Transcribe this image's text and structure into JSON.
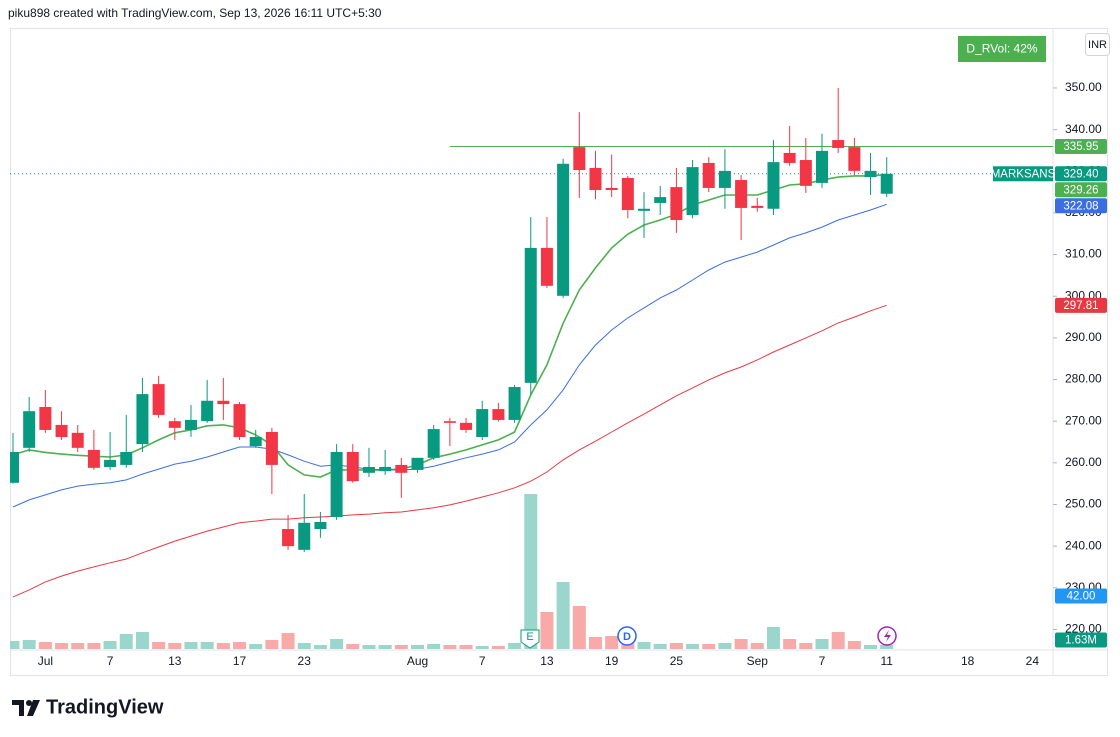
{
  "header": "piku898 created with TradingView.com, Sep 13, 2026 16:11 UTC+5:30",
  "brand": "TradingView",
  "chart_data": {
    "type": "candlestick",
    "symbol": "MARKSANS",
    "currency": "INR",
    "up_color": "#089981",
    "down_color": "#f23645",
    "categories": [
      null,
      null,
      "Jul",
      null,
      null,
      null,
      "7",
      null,
      null,
      null,
      "13",
      null,
      null,
      null,
      "17",
      null,
      null,
      null,
      "23",
      null,
      null,
      null,
      null,
      null,
      null,
      "Aug",
      null,
      null,
      null,
      "7",
      null,
      null,
      null,
      "13",
      null,
      null,
      null,
      "19",
      null,
      null,
      null,
      "25",
      null,
      null,
      null,
      null,
      "Sep",
      null,
      null,
      null,
      "7",
      null,
      null,
      null,
      "11",
      null,
      null,
      null,
      null,
      "18",
      null,
      null,
      null,
      "24"
    ],
    "open": [
      255.2,
      263.6,
      273.4,
      269.1,
      267.2,
      263.1,
      259.0,
      259.5,
      264.5,
      278.9,
      270.0,
      267.9,
      270.0,
      274.9,
      274.1,
      264.0,
      267.4,
      244.1,
      239.1,
      244.1,
      247.0,
      262.6,
      257.6,
      258.0,
      259.5,
      258.3,
      261.2,
      270.0,
      269.6,
      266.2,
      272.9,
      270.3,
      279.2,
      311.6,
      300.1,
      335.8,
      330.8,
      326.0,
      328.4,
      320.5,
      322.4,
      326.2,
      319.5,
      332.0,
      326.0,
      327.9,
      321.7,
      321.0,
      334.4,
      332.7,
      327.2,
      337.5,
      335.8,
      328.6,
      324.6,
      null,
      null,
      null,
      null,
      null,
      null,
      null,
      null,
      null
    ],
    "high": [
      267.2,
      275.8,
      277.5,
      272.4,
      269.1,
      267.9,
      267.4,
      271.5,
      280.4,
      280.9,
      270.8,
      273.9,
      279.9,
      280.4,
      274.6,
      267.9,
      268.4,
      247.5,
      252.5,
      248.2,
      264.5,
      264.5,
      263.6,
      263.1,
      261.2,
      261.2,
      269.1,
      270.8,
      270.8,
      274.9,
      274.4,
      278.7,
      319.0,
      319.0,
      333.0,
      344.2,
      334.9,
      334.0,
      328.9,
      325.0,
      326.5,
      330.8,
      332.7,
      333.4,
      335.3,
      329.1,
      323.6,
      337.5,
      340.9,
      338.0,
      339.0,
      350.0,
      338.0,
      334.4,
      333.4,
      null,
      null,
      null,
      null,
      null,
      null,
      null,
      null,
      null
    ],
    "low": [
      255.0,
      262.6,
      267.2,
      265.5,
      262.6,
      258.3,
      258.3,
      258.8,
      262.6,
      270.8,
      265.5,
      266.2,
      269.6,
      270.3,
      265.5,
      263.6,
      252.5,
      239.1,
      238.6,
      242.0,
      246.3,
      255.2,
      256.6,
      257.1,
      251.6,
      257.6,
      260.7,
      264.0,
      267.2,
      265.5,
      269.9,
      269.6,
      276.3,
      302.0,
      299.6,
      323.6,
      323.3,
      323.8,
      318.7,
      314.0,
      319.5,
      315.2,
      318.7,
      325.0,
      321.0,
      313.5,
      320.3,
      319.5,
      331.3,
      324.8,
      326.0,
      334.4,
      329.1,
      324.3,
      323.8,
      null,
      null,
      null,
      null,
      null,
      null,
      null,
      null,
      null
    ],
    "close": [
      262.6,
      272.4,
      267.9,
      266.2,
      263.6,
      258.8,
      260.7,
      262.6,
      276.5,
      271.5,
      268.4,
      270.3,
      274.9,
      274.1,
      266.2,
      266.2,
      259.5,
      240.0,
      245.6,
      245.8,
      262.6,
      255.6,
      259.0,
      259.0,
      257.6,
      261.2,
      268.1,
      269.6,
      267.9,
      272.9,
      270.3,
      278.2,
      311.6,
      302.5,
      331.8,
      330.3,
      325.5,
      325.5,
      320.7,
      321.0,
      323.8,
      318.3,
      331.0,
      326.0,
      330.1,
      321.2,
      321.2,
      332.2,
      332.0,
      326.5,
      334.9,
      335.6,
      330.1,
      330.1,
      329.4,
      null,
      null,
      null,
      null,
      null,
      null,
      null,
      null,
      null
    ],
    "close_label": "329.40",
    "volume": {
      "values": [
        3.2,
        3.6,
        2.8,
        2.4,
        2.4,
        2.4,
        3.2,
        6.0,
        6.8,
        2.8,
        2.4,
        2.8,
        2.8,
        2.4,
        2.8,
        2.0,
        3.6,
        6.4,
        2.4,
        1.6,
        4.0,
        2.0,
        1.6,
        1.6,
        1.6,
        1.6,
        2.0,
        1.6,
        1.6,
        1.2,
        1.2,
        2.4,
        62.0,
        14.8,
        26.8,
        17.2,
        4.8,
        5.2,
        4.0,
        2.8,
        2.0,
        2.4,
        2.0,
        2.0,
        2.4,
        4.0,
        2.4,
        8.8,
        4.0,
        2.4,
        4.0,
        6.8,
        3.2,
        1.6,
        1.63,
        null,
        null,
        null,
        null,
        null,
        null,
        null,
        null,
        null
      ],
      "last_label": "1.63M",
      "up_color": "#9bd6cc",
      "down_color": "#f7aaa8"
    },
    "lines": [
      {
        "color": "#4caf50",
        "values": [
          261.9,
          263.1,
          262.5,
          262.1,
          261.8,
          261.6,
          261.4,
          261.9,
          263.6,
          265.5,
          267.2,
          267.9,
          268.9,
          269.1,
          268.4,
          266.7,
          264.3,
          259.5,
          257.1,
          256.6,
          258.3,
          258.3,
          258.3,
          258.3,
          258.5,
          259.5,
          261.2,
          262.1,
          263.1,
          264.3,
          265.5,
          267.4,
          276.3,
          283.5,
          293.5,
          301.5,
          306.8,
          311.6,
          314.9,
          317.1,
          318.3,
          319.7,
          321.9,
          323.1,
          324.3,
          324.3,
          324.3,
          325.5,
          326.7,
          327.0,
          327.9,
          328.6,
          328.9,
          328.9,
          329.26,
          null,
          null,
          null,
          null,
          null,
          null,
          null,
          null,
          null
        ]
      },
      {
        "color": "#3b6fe0",
        "values": [
          249.4,
          251.1,
          252.3,
          253.5,
          254.4,
          254.9,
          255.2,
          255.9,
          257.3,
          258.5,
          259.7,
          260.4,
          261.4,
          262.6,
          263.8,
          263.8,
          263.3,
          261.9,
          260.4,
          259.2,
          259.5,
          259.0,
          258.5,
          258.3,
          258.3,
          258.5,
          259.2,
          260.2,
          261.2,
          262.1,
          263.1,
          265.0,
          269.1,
          272.7,
          277.5,
          283.5,
          288.3,
          291.9,
          294.8,
          297.2,
          299.6,
          301.5,
          303.9,
          306.3,
          308.2,
          309.4,
          310.6,
          312.3,
          314.0,
          315.2,
          316.6,
          318.3,
          319.5,
          320.7,
          322.08,
          null,
          null,
          null,
          null,
          null,
          null,
          null,
          null,
          null
        ]
      },
      {
        "color": "#e53a42",
        "values": [
          227.8,
          229.5,
          231.4,
          232.8,
          234.0,
          235.0,
          236.0,
          236.9,
          238.4,
          239.8,
          241.2,
          242.4,
          243.6,
          244.6,
          245.6,
          246.0,
          246.5,
          246.5,
          246.8,
          247.0,
          247.2,
          247.5,
          247.7,
          248.0,
          248.2,
          248.7,
          249.2,
          249.9,
          250.8,
          251.8,
          252.8,
          254.0,
          255.6,
          257.8,
          260.7,
          263.1,
          265.2,
          267.4,
          269.6,
          271.7,
          273.9,
          276.1,
          278.0,
          279.9,
          281.6,
          283.0,
          284.7,
          286.6,
          288.3,
          290.0,
          291.7,
          293.6,
          295.0,
          296.5,
          297.81,
          null,
          null,
          null,
          null,
          null,
          null,
          null,
          null,
          null
        ]
      }
    ],
    "hline": {
      "value": 335.95,
      "color": "#4caf50"
    },
    "rvol": {
      "legend": "D_RVol: 42%",
      "value": 42,
      "label": "42.00",
      "color": "#4caf50",
      "tag_color": "#2196f3"
    },
    "events": [
      "E",
      "D"
    ],
    "ylim": [
      215.3,
      364.4
    ],
    "yticks": [
      {
        "value": 220,
        "label": "220.00"
      },
      {
        "value": 230,
        "label": "230.00"
      },
      {
        "value": 240,
        "label": "240.00"
      },
      {
        "value": 250,
        "label": "250.00"
      },
      {
        "value": 260,
        "label": "260.00"
      },
      {
        "value": 270,
        "label": "270.00"
      },
      {
        "value": 280,
        "label": "280.00"
      },
      {
        "value": 290,
        "label": "290.00"
      },
      {
        "value": 300,
        "label": "300.00"
      },
      {
        "value": 310,
        "label": "310.00"
      },
      {
        "value": 320,
        "label": "320.00"
      },
      {
        "value": 330,
        "label": "330.00"
      },
      {
        "value": 340,
        "label": "340.00"
      },
      {
        "value": 350,
        "label": "350.00"
      }
    ],
    "grid": false
  }
}
